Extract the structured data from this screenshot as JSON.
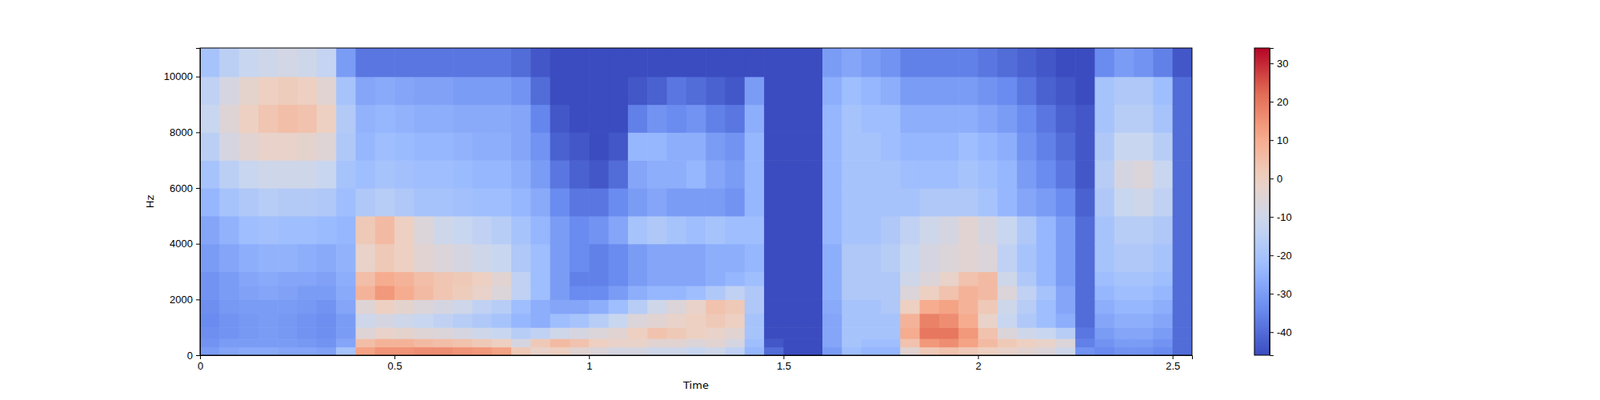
{
  "chart_data": {
    "type": "heatmap",
    "x_label": "Time",
    "y_label": "Hz",
    "xlim": [
      0,
      2.55
    ],
    "ylim": [
      0,
      11025
    ],
    "xticks": [
      0,
      0.5,
      1,
      1.5,
      2,
      2.5
    ],
    "yticks": [
      0,
      2000,
      4000,
      6000,
      8000,
      10000
    ],
    "x_edges": [
      0,
      0.05,
      0.1,
      0.15,
      0.2,
      0.25,
      0.3,
      0.35,
      0.4,
      0.45,
      0.5,
      0.55,
      0.6,
      0.65,
      0.7,
      0.75,
      0.8,
      0.85,
      0.9,
      0.95,
      1,
      1.05,
      1.1,
      1.15,
      1.2,
      1.25,
      1.3,
      1.35,
      1.4,
      1.45,
      1.5,
      1.55,
      1.6,
      1.65,
      1.7,
      1.75,
      1.8,
      1.85,
      1.9,
      1.95,
      2,
      2.05,
      2.1,
      2.15,
      2.2,
      2.25,
      2.3,
      2.35,
      2.4,
      2.45,
      2.5,
      2.55
    ],
    "y_edges": [
      0,
      300,
      600,
      1000,
      1500,
      2000,
      2500,
      3000,
      4000,
      5000,
      6000,
      7000,
      8000,
      9000,
      10000,
      11025
    ],
    "z": [
      [
        -30,
        -32,
        -33,
        -34,
        -33,
        -32,
        -32,
        -30,
        -28,
        -24,
        -20,
        -15,
        -12,
        -14,
        -20
      ],
      [
        -28,
        -30,
        -32,
        -32,
        -31,
        -30,
        -30,
        -28,
        -25,
        -20,
        -15,
        -8,
        -5,
        -8,
        -15
      ],
      [
        -27,
        -30,
        -31,
        -31,
        -30,
        -29,
        -28,
        -26,
        -22,
        -18,
        -12,
        -4,
        0,
        -3,
        -12
      ],
      [
        -27,
        -30,
        -30,
        -30,
        -30,
        -28,
        -27,
        -25,
        -21,
        -16,
        -10,
        -2,
        3,
        0,
        -10
      ],
      [
        -28,
        -30,
        -31,
        -31,
        -30,
        -29,
        -28,
        -25,
        -22,
        -17,
        -10,
        -2,
        5,
        1,
        -9
      ],
      [
        -28,
        -31,
        -32,
        -32,
        -31,
        -30,
        -28,
        -26,
        -22,
        -17,
        -10,
        -3,
        4,
        0,
        -10
      ],
      [
        -29,
        -32,
        -33,
        -33,
        -32,
        -30,
        -29,
        -27,
        -23,
        -18,
        -12,
        -5,
        0,
        -4,
        -13
      ],
      [
        -20,
        -28,
        -30,
        -30,
        -28,
        -27,
        -26,
        -25,
        -24,
        -22,
        -20,
        -18,
        -17,
        -20,
        -30
      ],
      [
        12,
        5,
        -5,
        -10,
        -5,
        8,
        5,
        -2,
        2,
        -18,
        -22,
        -24,
        -25,
        -28,
        -38
      ],
      [
        15,
        8,
        -2,
        -8,
        0,
        14,
        10,
        2,
        6,
        -16,
        -20,
        -22,
        -24,
        -27,
        -38
      ],
      [
        15,
        8,
        -3,
        -10,
        -3,
        10,
        8,
        0,
        0,
        -18,
        -21,
        -23,
        -25,
        -28,
        -38
      ],
      [
        16,
        6,
        -5,
        -12,
        -6,
        6,
        5,
        -4,
        -6,
        -20,
        -22,
        -24,
        -26,
        -29,
        -38
      ],
      [
        16,
        5,
        -6,
        -14,
        -8,
        3,
        3,
        -6,
        -10,
        -20,
        -22,
        -24,
        -26,
        -29,
        -38
      ],
      [
        15,
        4,
        -8,
        -16,
        -10,
        1,
        2,
        -8,
        -12,
        -21,
        -23,
        -25,
        -27,
        -30,
        -38
      ],
      [
        14,
        2,
        -10,
        -18,
        -14,
        -2,
        0,
        -10,
        -14,
        -22,
        -24,
        -26,
        -27,
        -30,
        -38
      ],
      [
        12,
        0,
        -12,
        -20,
        -16,
        -6,
        -4,
        -12,
        -16,
        -22,
        -24,
        -26,
        -27,
        -30,
        -38
      ],
      [
        2,
        -8,
        -16,
        -24,
        -22,
        -14,
        -14,
        -18,
        -20,
        -24,
        -26,
        -28,
        -28,
        -32,
        -40
      ],
      [
        -2,
        2,
        -14,
        -26,
        -26,
        -22,
        -22,
        -22,
        -24,
        -27,
        -30,
        -32,
        -35,
        -40,
        -44
      ],
      [
        0,
        6,
        -10,
        -22,
        -28,
        -30,
        -30,
        -30,
        -30,
        -34,
        -38,
        -42,
        -44,
        -46,
        -46
      ],
      [
        -4,
        4,
        -8,
        -20,
        -28,
        -34,
        -36,
        -34,
        -34,
        -38,
        -42,
        -44,
        -46,
        -46,
        -46
      ],
      [
        -6,
        0,
        -6,
        -16,
        -26,
        -34,
        -36,
        -36,
        -32,
        -38,
        -44,
        -46,
        -46,
        -46,
        -46
      ],
      [
        -8,
        -2,
        -4,
        -12,
        -22,
        -30,
        -34,
        -34,
        -28,
        -34,
        -40,
        -44,
        -46,
        -46,
        -46
      ],
      [
        -8,
        -2,
        0,
        -6,
        -16,
        -26,
        -30,
        -30,
        -20,
        -30,
        -28,
        -24,
        -36,
        -44,
        -46
      ],
      [
        -10,
        -4,
        4,
        -4,
        -10,
        -24,
        -28,
        -28,
        -18,
        -28,
        -26,
        -24,
        -32,
        -42,
        -46
      ],
      [
        -10,
        -4,
        2,
        -2,
        -6,
        -24,
        -28,
        -28,
        -20,
        -30,
        -26,
        -26,
        -34,
        -38,
        -46
      ],
      [
        -12,
        -6,
        0,
        0,
        -2,
        -22,
        -28,
        -28,
        -22,
        -30,
        -24,
        -26,
        -32,
        -40,
        -46
      ],
      [
        -10,
        -4,
        -2,
        2,
        4,
        -18,
        -26,
        -26,
        -20,
        -30,
        -28,
        -30,
        -36,
        -42,
        -46
      ],
      [
        -14,
        -8,
        -4,
        0,
        2,
        -14,
        -24,
        -26,
        -22,
        -32,
        -30,
        -32,
        -38,
        -44,
        -46
      ],
      [
        -24,
        -22,
        -20,
        -20,
        -18,
        -18,
        -22,
        -24,
        -22,
        -24,
        -24,
        -24,
        -26,
        -30,
        -46
      ],
      [
        -40,
        -44,
        -46,
        -46,
        -46,
        -46,
        -46,
        -46,
        -46,
        -46,
        -46,
        -46,
        -46,
        -46,
        -46
      ],
      [
        -46,
        -46,
        -46,
        -46,
        -46,
        -46,
        -46,
        -46,
        -46,
        -46,
        -46,
        -46,
        -46,
        -46,
        -46
      ],
      [
        -46,
        -46,
        -46,
        -46,
        -46,
        -46,
        -46,
        -46,
        -46,
        -46,
        -46,
        -46,
        -46,
        -46,
        -46
      ],
      [
        -30,
        -28,
        -28,
        -28,
        -27,
        -26,
        -26,
        -26,
        -24,
        -24,
        -24,
        -24,
        -24,
        -26,
        -30
      ],
      [
        -22,
        -20,
        -20,
        -20,
        -20,
        -18,
        -18,
        -18,
        -20,
        -20,
        -20,
        -20,
        -20,
        -22,
        -28
      ],
      [
        -24,
        -22,
        -20,
        -20,
        -20,
        -18,
        -18,
        -18,
        -20,
        -20,
        -20,
        -20,
        -22,
        -24,
        -30
      ],
      [
        -24,
        -22,
        -20,
        -20,
        -18,
        -18,
        -18,
        -16,
        -18,
        -20,
        -20,
        -22,
        -22,
        -26,
        -32
      ],
      [
        -4,
        4,
        10,
        8,
        0,
        -6,
        -10,
        -12,
        -14,
        -20,
        -22,
        -24,
        -26,
        -30,
        -36
      ],
      [
        2,
        14,
        20,
        18,
        10,
        0,
        -6,
        -8,
        -10,
        -18,
        -22,
        -24,
        -26,
        -30,
        -36
      ],
      [
        4,
        16,
        20,
        16,
        12,
        4,
        -2,
        -6,
        -8,
        -18,
        -22,
        -24,
        -26,
        -30,
        -36
      ],
      [
        2,
        12,
        14,
        10,
        8,
        8,
        4,
        -4,
        -4,
        -18,
        -20,
        -22,
        -26,
        -30,
        -36
      ],
      [
        0,
        6,
        4,
        -2,
        2,
        6,
        6,
        -6,
        -8,
        -20,
        -22,
        -24,
        -28,
        -32,
        -38
      ],
      [
        -2,
        2,
        -6,
        -12,
        -10,
        -6,
        -10,
        -14,
        -12,
        -24,
        -24,
        -26,
        -30,
        -34,
        -40
      ],
      [
        -4,
        0,
        -10,
        -18,
        -16,
        -14,
        -18,
        -20,
        -18,
        -28,
        -30,
        -32,
        -34,
        -38,
        -42
      ],
      [
        -6,
        -2,
        -12,
        -22,
        -22,
        -20,
        -24,
        -24,
        -24,
        -30,
        -34,
        -36,
        -38,
        -42,
        -44
      ],
      [
        -10,
        -6,
        -16,
        -26,
        -28,
        -28,
        -30,
        -30,
        -30,
        -34,
        -38,
        -40,
        -42,
        -44,
        -46
      ],
      [
        -32,
        -36,
        -38,
        -40,
        -40,
        -40,
        -40,
        -40,
        -40,
        -42,
        -44,
        -44,
        -44,
        -46,
        -46
      ],
      [
        -34,
        -32,
        -30,
        -28,
        -26,
        -24,
        -22,
        -20,
        -20,
        -18,
        -16,
        -18,
        -20,
        -20,
        -34
      ],
      [
        -32,
        -30,
        -28,
        -26,
        -24,
        -22,
        -20,
        -18,
        -16,
        -12,
        -8,
        -12,
        -16,
        -18,
        -30
      ],
      [
        -32,
        -30,
        -28,
        -26,
        -24,
        -22,
        -20,
        -18,
        -16,
        -10,
        -6,
        -12,
        -16,
        -18,
        -32
      ],
      [
        -34,
        -32,
        -30,
        -28,
        -26,
        -24,
        -22,
        -20,
        -18,
        -14,
        -12,
        -16,
        -20,
        -22,
        -36
      ],
      [
        -40,
        -40,
        -40,
        -40,
        -40,
        -40,
        -40,
        -40,
        -40,
        -40,
        -40,
        -40,
        -40,
        -40,
        -44
      ]
    ],
    "colorbar": {
      "range": [
        -46,
        34
      ],
      "ticks": [
        -40,
        -30,
        -20,
        -10,
        0,
        10,
        20,
        30
      ]
    }
  }
}
